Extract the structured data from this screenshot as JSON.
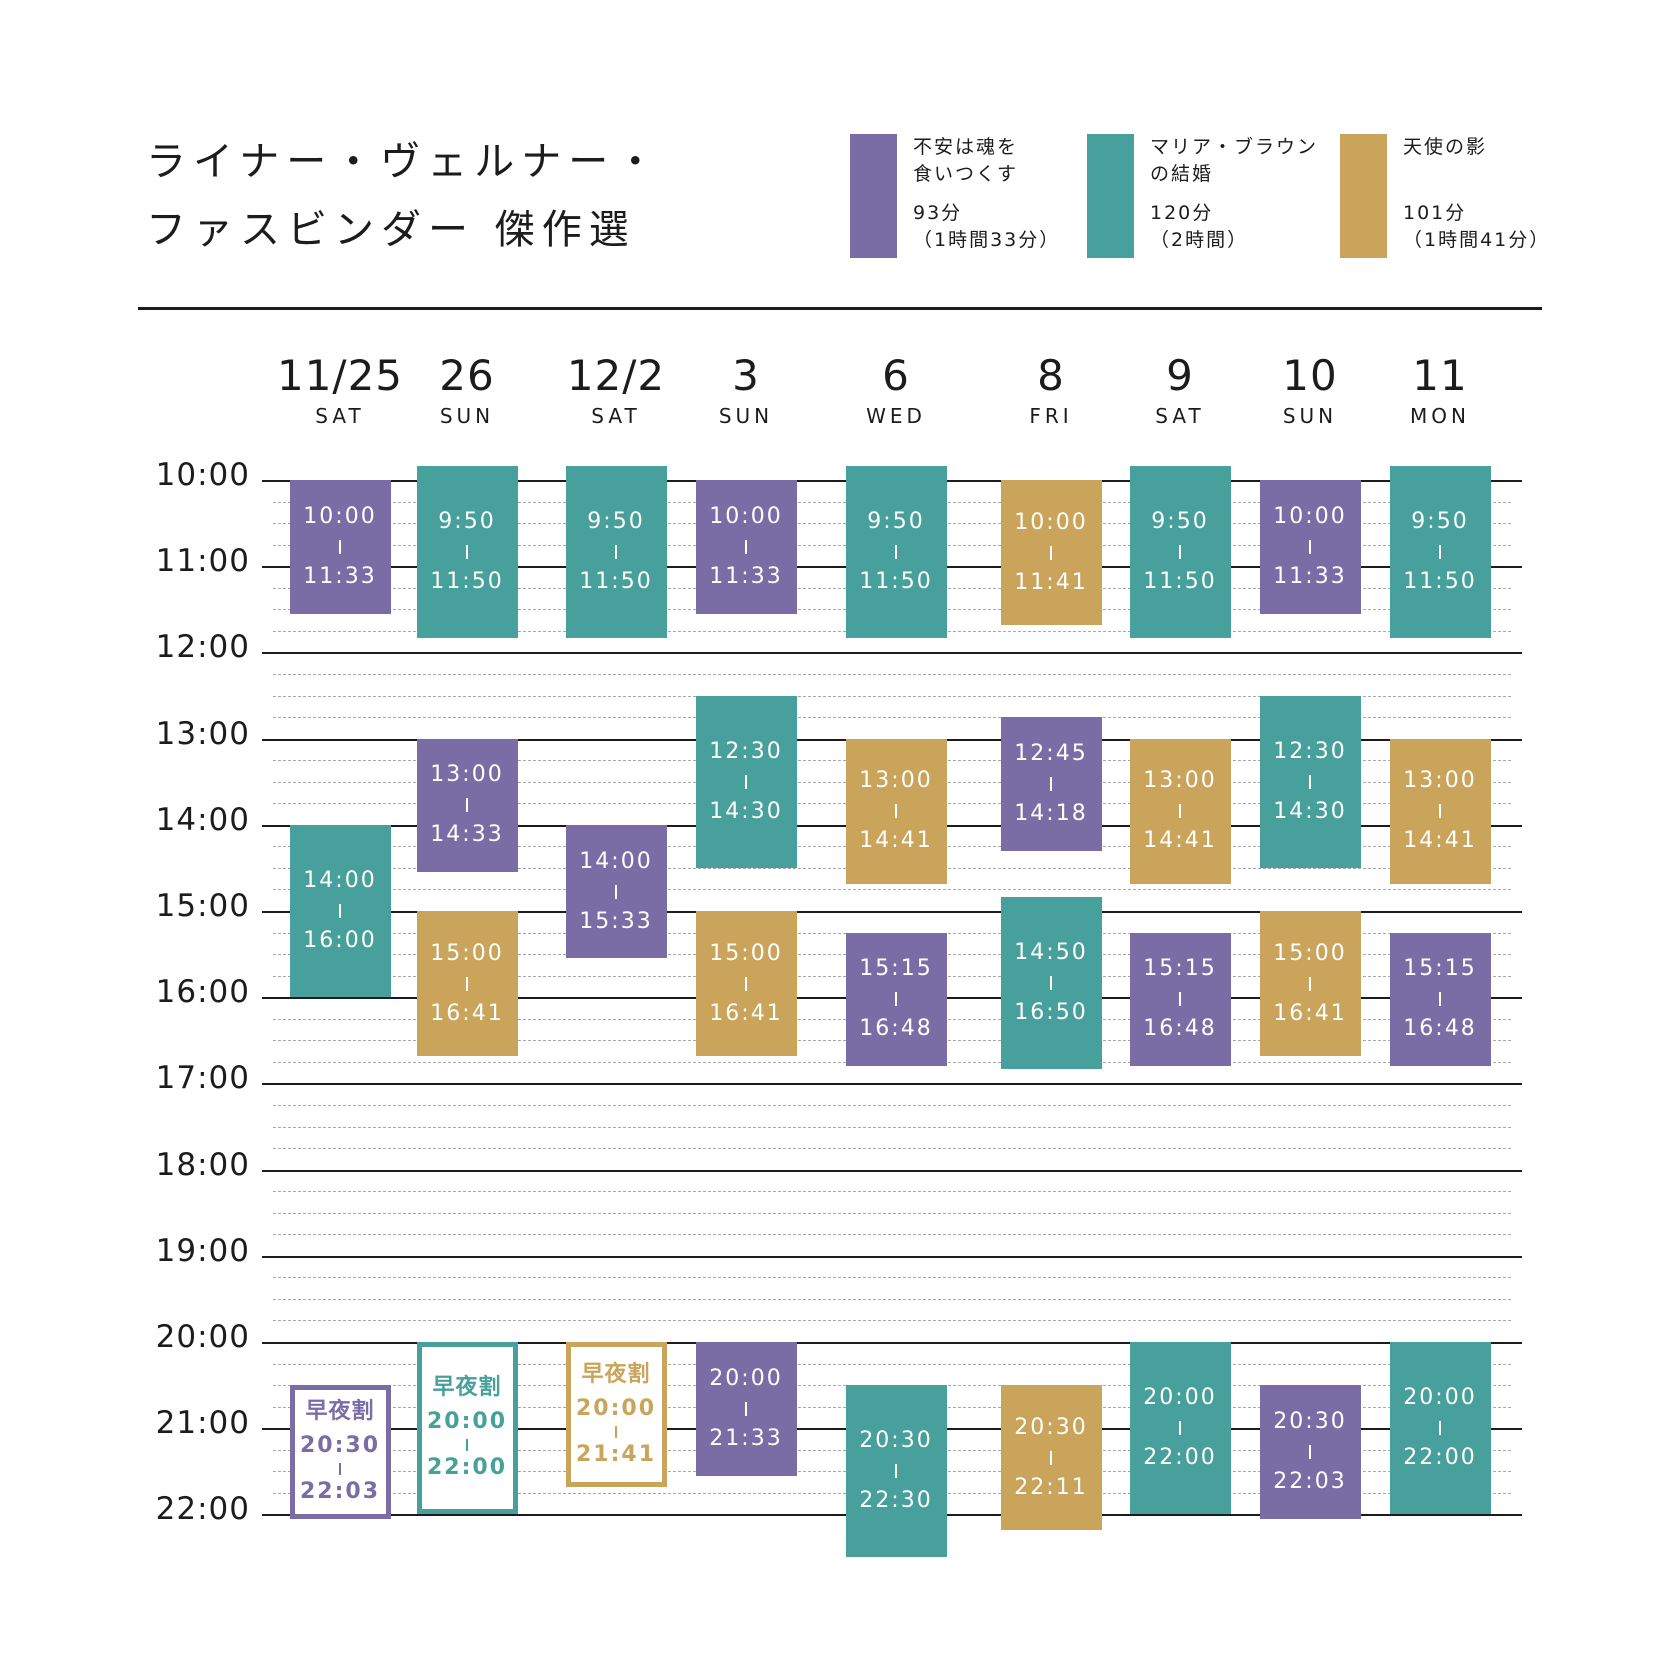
{
  "colors": {
    "purple": "#7a6da6",
    "teal": "#47a09c",
    "gold": "#c9a45a",
    "ink": "#1c1c1c"
  },
  "title": {
    "line1": "ライナー・ヴェルナー・",
    "line2": "ファスビンダー 傑作選"
  },
  "legend": [
    {
      "color_key": "purple",
      "title_lines": [
        "不安は魂を",
        "食いつくす"
      ],
      "runtime": "93分",
      "runtime_hm": "（1時間33分）"
    },
    {
      "color_key": "teal",
      "title_lines": [
        "マリア・ブラウン",
        "の結婚"
      ],
      "runtime": "120分",
      "runtime_hm": "（2時間）"
    },
    {
      "color_key": "gold",
      "title_lines": [
        "天使の影",
        ""
      ],
      "runtime": "101分",
      "runtime_hm": "（1時間41分）"
    }
  ],
  "time_labels": [
    "10:00",
    "11:00",
    "12:00",
    "13:00",
    "14:00",
    "15:00",
    "16:00",
    "17:00",
    "18:00",
    "19:00",
    "20:00",
    "21:00",
    "22:00"
  ],
  "days": [
    {
      "date": "11/25",
      "weekday": "SAT",
      "screenings": [
        {
          "start": "10:00",
          "end": "11:33",
          "film": "purple"
        },
        {
          "start": "14:00",
          "end": "16:00",
          "film": "teal"
        },
        {
          "start": "20:30",
          "end": "22:03",
          "film": "purple",
          "badge": "早夜割"
        }
      ]
    },
    {
      "date": "26",
      "weekday": "SUN",
      "screenings": [
        {
          "start": "9:50",
          "end": "11:50",
          "film": "teal"
        },
        {
          "start": "13:00",
          "end": "14:33",
          "film": "purple"
        },
        {
          "start": "15:00",
          "end": "16:41",
          "film": "gold"
        },
        {
          "start": "20:00",
          "end": "22:00",
          "film": "teal",
          "badge": "早夜割"
        }
      ]
    },
    {
      "date": "12/2",
      "weekday": "SAT",
      "screenings": [
        {
          "start": "9:50",
          "end": "11:50",
          "film": "teal"
        },
        {
          "start": "14:00",
          "end": "15:33",
          "film": "purple"
        },
        {
          "start": "20:00",
          "end": "21:41",
          "film": "gold",
          "badge": "早夜割"
        }
      ]
    },
    {
      "date": "3",
      "weekday": "SUN",
      "screenings": [
        {
          "start": "10:00",
          "end": "11:33",
          "film": "purple"
        },
        {
          "start": "12:30",
          "end": "14:30",
          "film": "teal"
        },
        {
          "start": "15:00",
          "end": "16:41",
          "film": "gold"
        },
        {
          "start": "20:00",
          "end": "21:33",
          "film": "purple"
        }
      ]
    },
    {
      "date": "6",
      "weekday": "WED",
      "screenings": [
        {
          "start": "9:50",
          "end": "11:50",
          "film": "teal"
        },
        {
          "start": "13:00",
          "end": "14:41",
          "film": "gold"
        },
        {
          "start": "15:15",
          "end": "16:48",
          "film": "purple"
        },
        {
          "start": "20:30",
          "end": "22:30",
          "film": "teal"
        }
      ]
    },
    {
      "date": "8",
      "weekday": "FRI",
      "screenings": [
        {
          "start": "10:00",
          "end": "11:41",
          "film": "gold"
        },
        {
          "start": "12:45",
          "end": "14:18",
          "film": "purple"
        },
        {
          "start": "14:50",
          "end": "16:50",
          "film": "teal"
        },
        {
          "start": "20:30",
          "end": "22:11",
          "film": "gold"
        }
      ]
    },
    {
      "date": "9",
      "weekday": "SAT",
      "screenings": [
        {
          "start": "9:50",
          "end": "11:50",
          "film": "teal"
        },
        {
          "start": "13:00",
          "end": "14:41",
          "film": "gold"
        },
        {
          "start": "15:15",
          "end": "16:48",
          "film": "purple"
        },
        {
          "start": "20:00",
          "end": "22:00",
          "film": "teal"
        }
      ]
    },
    {
      "date": "10",
      "weekday": "SUN",
      "screenings": [
        {
          "start": "10:00",
          "end": "11:33",
          "film": "purple"
        },
        {
          "start": "12:30",
          "end": "14:30",
          "film": "teal"
        },
        {
          "start": "15:00",
          "end": "16:41",
          "film": "gold"
        },
        {
          "start": "20:30",
          "end": "22:03",
          "film": "purple"
        }
      ]
    },
    {
      "date": "11",
      "weekday": "MON",
      "screenings": [
        {
          "start": "9:50",
          "end": "11:50",
          "film": "teal"
        },
        {
          "start": "13:00",
          "end": "14:41",
          "film": "gold"
        },
        {
          "start": "15:15",
          "end": "16:48",
          "film": "purple"
        },
        {
          "start": "20:00",
          "end": "22:00",
          "film": "teal"
        }
      ]
    }
  ]
}
